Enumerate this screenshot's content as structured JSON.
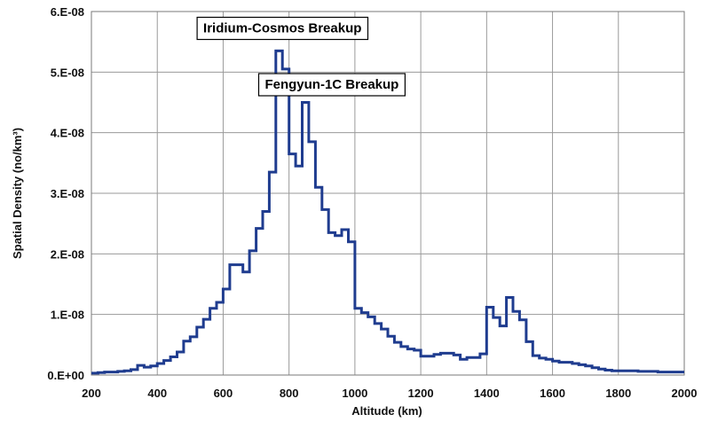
{
  "chart_data": {
    "type": "line",
    "step": true,
    "xlabel": "Altitude (km)",
    "ylabel": "Spatial Density (no/km³)",
    "xlim": [
      200,
      2000
    ],
    "ylim": [
      0,
      6e-08
    ],
    "x_ticks": [
      200,
      400,
      600,
      800,
      1000,
      1200,
      1400,
      1600,
      1800,
      2000
    ],
    "y_ticks": [
      0,
      1e-08,
      2e-08,
      3e-08,
      4e-08,
      5e-08,
      6e-08
    ],
    "y_tick_labels": [
      "0.E+00",
      "1.E-08",
      "2.E-08",
      "3.E-08",
      "4.E-08",
      "5.E-08",
      "6.E-08"
    ],
    "grid": true,
    "series_color": "#1f3c8f",
    "bin_width_km": 20,
    "series": [
      {
        "x": [
          200,
          220,
          240,
          260,
          280,
          300,
          320,
          340,
          360,
          380,
          400,
          420,
          440,
          460,
          480,
          500,
          520,
          540,
          560,
          580,
          600,
          620,
          640,
          660,
          680,
          700,
          720,
          740,
          760,
          780,
          800,
          820,
          840,
          860,
          880,
          900,
          920,
          940,
          960,
          980,
          1000,
          1020,
          1040,
          1060,
          1080,
          1100,
          1120,
          1140,
          1160,
          1180,
          1200,
          1220,
          1240,
          1260,
          1280,
          1300,
          1320,
          1340,
          1360,
          1380,
          1400,
          1420,
          1440,
          1460,
          1480,
          1500,
          1520,
          1540,
          1560,
          1580,
          1600,
          1620,
          1640,
          1660,
          1680,
          1700,
          1720,
          1740,
          1760,
          1780,
          1800,
          1820,
          1840,
          1860,
          1880,
          1900,
          1920,
          1940,
          1960,
          1980
        ],
        "values": [
          3e-10,
          4e-10,
          5e-10,
          5e-10,
          6e-10,
          7e-10,
          9e-10,
          1.6e-09,
          1.3e-09,
          1.5e-09,
          1.9e-09,
          2.4e-09,
          3e-09,
          3.8e-09,
          5.6e-09,
          6.3e-09,
          7.9e-09,
          9.2e-09,
          1.1e-08,
          1.2e-08,
          1.42e-08,
          1.82e-08,
          1.82e-08,
          1.7e-08,
          2.05e-08,
          2.42e-08,
          2.7e-08,
          3.35e-08,
          5.35e-08,
          5.05e-08,
          3.65e-08,
          3.45e-08,
          4.5e-08,
          3.85e-08,
          3.1e-08,
          2.73e-08,
          2.35e-08,
          2.3e-08,
          2.4e-08,
          2.2e-08,
          1.1e-08,
          1.03e-08,
          9.6e-09,
          8.5e-09,
          7.6e-09,
          6.4e-09,
          5.4e-09,
          4.7e-09,
          4.3e-09,
          4.1e-09,
          3.1e-09,
          3.1e-09,
          3.4e-09,
          3.6e-09,
          3.6e-09,
          3.3e-09,
          2.6e-09,
          2.9e-09,
          2.9e-09,
          3.5e-09,
          1.12e-08,
          9.5e-09,
          8.1e-09,
          1.28e-08,
          1.05e-08,
          9.1e-09,
          5.5e-09,
          3.2e-09,
          2.8e-09,
          2.6e-09,
          2.3e-09,
          2.1e-09,
          2.1e-09,
          1.9e-09,
          1.7e-09,
          1.5e-09,
          1.2e-09,
          1e-09,
          8e-10,
          7e-10,
          7e-10,
          7e-10,
          7e-10,
          6e-10,
          6e-10,
          6e-10,
          5e-10,
          5e-10,
          5e-10,
          5e-10
        ]
      }
    ],
    "annotations": [
      {
        "text": "Iridium-Cosmos Breakup",
        "x": 780,
        "y": 5.73e-08
      },
      {
        "text": "Fengyun-1C Breakup",
        "x": 930,
        "y": 4.8e-08
      }
    ]
  }
}
